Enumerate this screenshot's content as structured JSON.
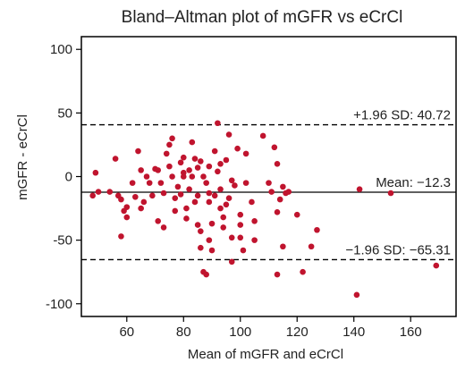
{
  "chart_data": {
    "type": "scatter",
    "title": "Bland–Altman plot of mGFR vs eCrCl",
    "xlabel": "Mean of mGFR and eCrCl",
    "ylabel": "mGFR - eCrCl",
    "xlim": [
      44,
      176
    ],
    "ylim": [
      -110,
      110
    ],
    "xticks": [
      60,
      80,
      100,
      120,
      140,
      160
    ],
    "yticks": [
      100,
      50,
      0,
      -50,
      -100
    ],
    "grid": false,
    "marker_color": "#c0142e",
    "reference_lines": [
      {
        "label": "+1.96 SD: 40.72",
        "y": 40.72,
        "style": "dashed"
      },
      {
        "label": "Mean: −12.3",
        "y": -12.3,
        "style": "solid"
      },
      {
        "label": "−1.96 SD: −65.31",
        "y": -65.31,
        "style": "dashed"
      }
    ],
    "points": [
      [
        48,
        -15
      ],
      [
        49,
        3
      ],
      [
        50,
        -12
      ],
      [
        54,
        -12
      ],
      [
        56,
        14
      ],
      [
        57,
        -15
      ],
      [
        58,
        -18
      ],
      [
        58,
        -47
      ],
      [
        59,
        -27
      ],
      [
        60,
        -32
      ],
      [
        60,
        -24
      ],
      [
        62,
        -5
      ],
      [
        63,
        -16
      ],
      [
        64,
        20
      ],
      [
        65,
        5
      ],
      [
        65,
        -25
      ],
      [
        66,
        -20
      ],
      [
        67,
        0
      ],
      [
        68,
        -5
      ],
      [
        69,
        -15
      ],
      [
        70,
        6
      ],
      [
        71,
        5
      ],
      [
        71,
        -35
      ],
      [
        72,
        -5
      ],
      [
        73,
        -40
      ],
      [
        73,
        -13
      ],
      [
        74,
        18
      ],
      [
        75,
        25
      ],
      [
        75,
        8
      ],
      [
        76,
        30
      ],
      [
        76,
        0
      ],
      [
        77,
        -27
      ],
      [
        77,
        -17
      ],
      [
        78,
        -8
      ],
      [
        79,
        -14
      ],
      [
        79,
        11
      ],
      [
        80,
        0
      ],
      [
        80,
        3
      ],
      [
        80,
        15
      ],
      [
        81,
        -25
      ],
      [
        81,
        -33
      ],
      [
        82,
        5
      ],
      [
        82,
        -10
      ],
      [
        83,
        27
      ],
      [
        83,
        0
      ],
      [
        84,
        -20
      ],
      [
        84,
        14
      ],
      [
        85,
        7
      ],
      [
        85,
        -15
      ],
      [
        85,
        -38
      ],
      [
        86,
        -43
      ],
      [
        86,
        12
      ],
      [
        86,
        -56
      ],
      [
        87,
        -75
      ],
      [
        87,
        0
      ],
      [
        88,
        -5
      ],
      [
        88,
        -77
      ],
      [
        89,
        -13
      ],
      [
        89,
        -20
      ],
      [
        89,
        8
      ],
      [
        89,
        -50
      ],
      [
        90,
        -37
      ],
      [
        90,
        -58
      ],
      [
        91,
        20
      ],
      [
        91,
        -15
      ],
      [
        92,
        42
      ],
      [
        92,
        4
      ],
      [
        93,
        10
      ],
      [
        93,
        -10
      ],
      [
        93,
        -25
      ],
      [
        94,
        -32
      ],
      [
        94,
        -40
      ],
      [
        95,
        -22
      ],
      [
        95,
        13
      ],
      [
        96,
        33
      ],
      [
        96,
        -17
      ],
      [
        97,
        -48
      ],
      [
        97,
        -67
      ],
      [
        97,
        -3
      ],
      [
        98,
        -7
      ],
      [
        99,
        22
      ],
      [
        100,
        -30
      ],
      [
        100,
        -38
      ],
      [
        100,
        -48
      ],
      [
        101,
        -58
      ],
      [
        102,
        -5
      ],
      [
        102,
        18
      ],
      [
        104,
        -20
      ],
      [
        105,
        -35
      ],
      [
        105,
        -50
      ],
      [
        108,
        32
      ],
      [
        110,
        -5
      ],
      [
        111,
        -12
      ],
      [
        112,
        23
      ],
      [
        113,
        -28
      ],
      [
        113,
        -77
      ],
      [
        113,
        10
      ],
      [
        114,
        -18
      ],
      [
        115,
        -55
      ],
      [
        115,
        -8
      ],
      [
        116,
        -13
      ],
      [
        117,
        -12
      ],
      [
        120,
        -30
      ],
      [
        122,
        -75
      ],
      [
        125,
        -55
      ],
      [
        127,
        -42
      ],
      [
        141,
        -93
      ],
      [
        142,
        -10
      ],
      [
        153,
        -13
      ],
      [
        169,
        -70
      ]
    ]
  }
}
